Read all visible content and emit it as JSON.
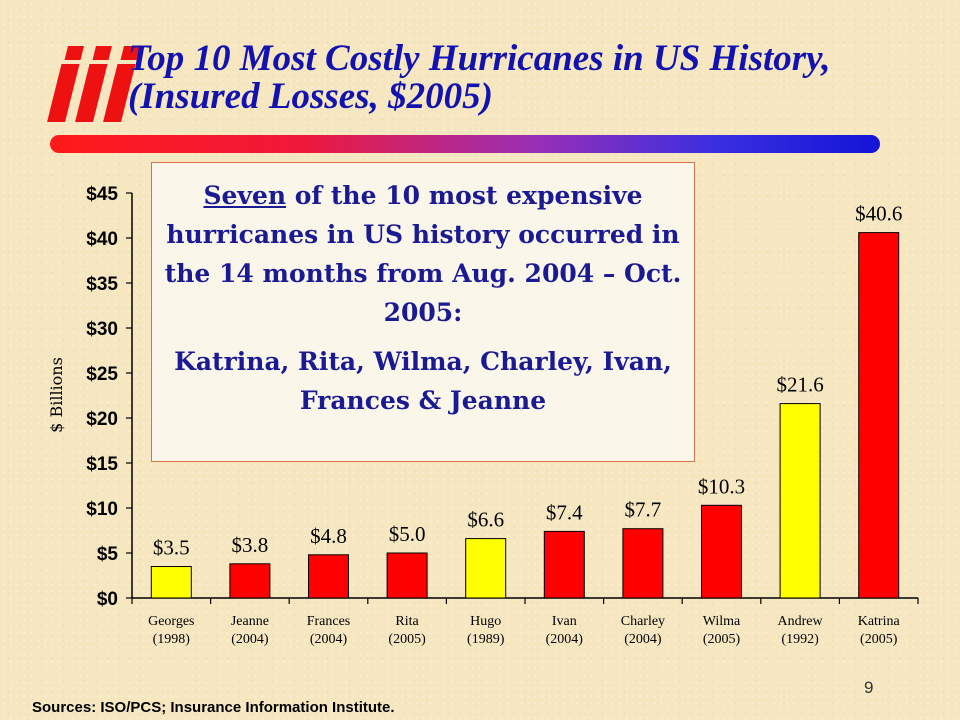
{
  "title": {
    "line1": "Top 10 Most Costly Hurricanes in US History,",
    "line2": "(Insured Losses, $2005)"
  },
  "callout": {
    "lead_underlined": "Seven",
    "lead_rest": " of the 10 most expensive hurricanes in US history occurred in the 14 months from Aug. 2004 – Oct. 2005:",
    "names": "Katrina, Rita, Wilma, Charley, Ivan, Frances & Jeanne"
  },
  "sources": "Sources: ISO/PCS; Insurance Information Institute.",
  "page_number": "9",
  "colors": {
    "title": "#1212b0",
    "red_bar": "#ff0000",
    "yellow_bar": "#ffff00",
    "logo": "#ee1111"
  },
  "chart_data": {
    "type": "bar",
    "ylabel": "$ Billions",
    "ylim": [
      0,
      45
    ],
    "yticks": [
      0,
      5,
      10,
      15,
      20,
      25,
      30,
      35,
      40,
      45
    ],
    "ytick_labels": [
      "$0",
      "$5",
      "$10",
      "$15",
      "$20",
      "$25",
      "$30",
      "$35",
      "$40",
      "$45"
    ],
    "grid": false,
    "categories": [
      "Georges",
      "Jeanne",
      "Frances",
      "Rita",
      "Hugo",
      "Ivan",
      "Charley",
      "Wilma",
      "Andrew",
      "Katrina"
    ],
    "years": [
      "(1998)",
      "(2004)",
      "(2004)",
      "(2005)",
      "(1989)",
      "(2004)",
      "(2004)",
      "(2005)",
      "(1992)",
      "(2005)"
    ],
    "values": [
      3.5,
      3.8,
      4.8,
      5.0,
      6.6,
      7.4,
      7.7,
      10.3,
      21.6,
      40.6
    ],
    "data_labels": [
      "$3.5",
      "$3.8",
      "$4.8",
      "$5.0",
      "$6.6",
      "$7.4",
      "$7.7",
      "$10.3",
      "$21.6",
      "$40.6"
    ],
    "bar_colors": [
      "yellow",
      "red",
      "red",
      "red",
      "yellow",
      "red",
      "red",
      "red",
      "yellow",
      "red"
    ]
  }
}
